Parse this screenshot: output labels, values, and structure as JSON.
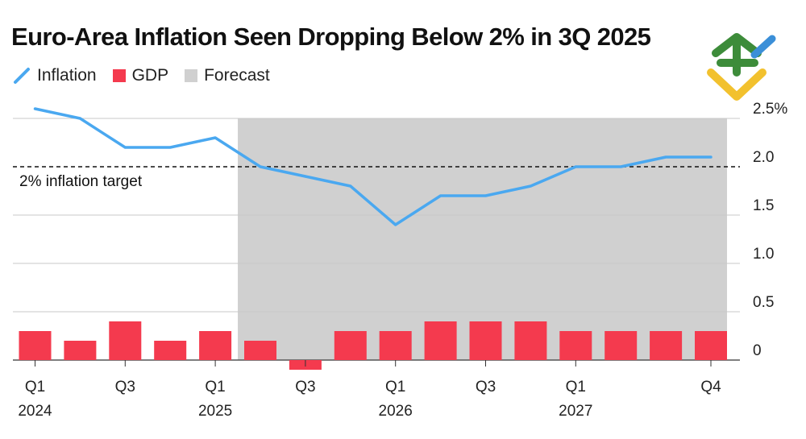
{
  "title": "Euro-Area Inflation Seen Dropping Below 2% in 3Q 2025",
  "legend": [
    {
      "key": "inflation",
      "label": "Inflation",
      "color": "#4aa8f0"
    },
    {
      "key": "gdp",
      "label": "GDP",
      "color": "#f43a4e"
    },
    {
      "key": "forecast",
      "label": "Forecast",
      "color": "#d0d0d0"
    }
  ],
  "chart_data": {
    "type": "bar+line",
    "title": "Euro-Area Inflation Seen Dropping Below 2% in 3Q 2025",
    "quarters": [
      "Q1 2024",
      "Q2 2024",
      "Q3 2024",
      "Q4 2024",
      "Q1 2025",
      "Q2 2025",
      "Q3 2025",
      "Q4 2025",
      "Q1 2026",
      "Q2 2026",
      "Q3 2026",
      "Q4 2026",
      "Q1 2027",
      "Q2 2027",
      "Q3 2027",
      "Q4 2027"
    ],
    "series": [
      {
        "name": "Inflation",
        "type": "line",
        "color": "#4aa8f0",
        "values": [
          2.6,
          2.5,
          2.2,
          2.2,
          2.3,
          2.0,
          1.9,
          1.8,
          1.4,
          1.7,
          1.7,
          1.8,
          2.0,
          2.0,
          2.1,
          2.1
        ]
      },
      {
        "name": "GDP",
        "type": "bar",
        "color": "#f43a4e",
        "values": [
          0.3,
          0.2,
          0.4,
          0.2,
          0.3,
          0.2,
          -0.1,
          0.3,
          0.3,
          0.4,
          0.4,
          0.4,
          0.3,
          0.3,
          0.3,
          0.3
        ]
      }
    ],
    "forecast_range": {
      "start": "Q2 2025",
      "end": "Q4 2027"
    },
    "reference_line": {
      "value": 2.0,
      "label": "2% inflation target"
    },
    "y_ticks": [
      {
        "value": 2.5,
        "label": "2.5%"
      },
      {
        "value": 2.0,
        "label": "2.0"
      },
      {
        "value": 1.5,
        "label": "1.5"
      },
      {
        "value": 1.0,
        "label": "1.0"
      },
      {
        "value": 0.5,
        "label": "0.5"
      },
      {
        "value": 0,
        "label": "0"
      }
    ],
    "x_ticks": [
      {
        "index": 0,
        "quarter": "Q1",
        "year": "2024"
      },
      {
        "index": 2,
        "quarter": "Q3",
        "year": ""
      },
      {
        "index": 4,
        "quarter": "Q1",
        "year": "2025"
      },
      {
        "index": 6,
        "quarter": "Q3",
        "year": ""
      },
      {
        "index": 8,
        "quarter": "Q1",
        "year": "2026"
      },
      {
        "index": 10,
        "quarter": "Q3",
        "year": ""
      },
      {
        "index": 12,
        "quarter": "Q1",
        "year": "2027"
      },
      {
        "index": 15,
        "quarter": "Q4",
        "year": ""
      }
    ],
    "ylim": [
      -0.1,
      2.5
    ],
    "grid": true
  }
}
